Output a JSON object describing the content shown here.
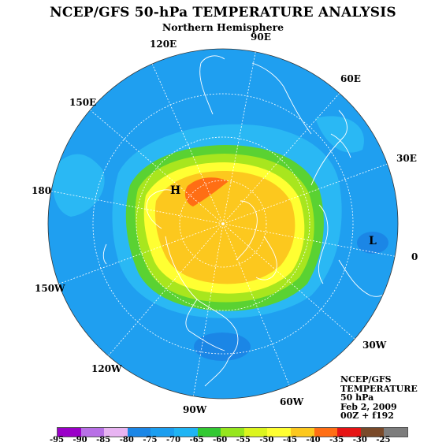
{
  "title": "NCEP/GFS 50-hPa TEMPERATURE ANALYSIS",
  "subtitle": "Northern Hemisphere",
  "longitude_labels": [
    "90E",
    "120E",
    "60E",
    "150E",
    "30E",
    "180",
    "0",
    "150W",
    "30W",
    "120W",
    "60W",
    "90W"
  ],
  "pressure_centers": [
    "H",
    "L"
  ],
  "info_block": [
    "NCEP/GFS",
    "TEMPERATURE",
    "50 hPa",
    "Feb 2, 2009",
    "00Z + f192"
  ],
  "colorbar": {
    "labels": [
      "-95",
      "-90",
      "-85",
      "-80",
      "-75",
      "-70",
      "-65",
      "-60",
      "-55",
      "-50",
      "-45",
      "-40",
      "-35",
      "-30",
      "-25"
    ],
    "colors": [
      "#9a00c8",
      "#b870e6",
      "#e8b4f2",
      "#1b86e6",
      "#1b9ef0",
      "#1fb4f4",
      "#32c832",
      "#96e61e",
      "#dcf51e",
      "#ffff32",
      "#fcc81e",
      "#ff6e14",
      "#e61414",
      "#7a4a2a",
      "#7d7d7d"
    ]
  },
  "colors": {
    "ocean_background": "#1f9ff0",
    "graticule": "#ffffff",
    "coastlines": "#ffffff"
  }
}
